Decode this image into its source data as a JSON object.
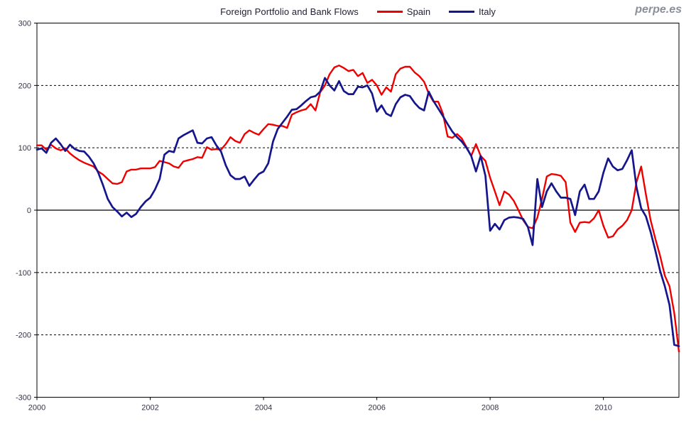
{
  "watermark": "perpe.es",
  "chart_data": {
    "type": "line",
    "title": "Foreign Portfolio and Bank Flows",
    "frequency": "monthly",
    "x_start": "2000-01",
    "x_end": "2011-05",
    "ylim": [
      -300,
      300
    ],
    "y_ticks": [
      300,
      200,
      100,
      0,
      -100,
      -200,
      -300
    ],
    "x_tick_years": [
      "2000",
      "2002",
      "2004",
      "2006",
      "2008",
      "2010"
    ],
    "x_tick_month_index": [
      0,
      24,
      48,
      72,
      96,
      120
    ],
    "grid": "dashed horizontal lines at -200,-100,100,200; solid line at 0; boxed plot frame",
    "legend_position": "top",
    "axis_color": "#000000",
    "series": [
      {
        "name": "Spain",
        "color": "#ee0000",
        "values": [
          104,
          104,
          97,
          105,
          99,
          96,
          99,
          91,
          85,
          80,
          76,
          73,
          70,
          62,
          57,
          50,
          43,
          42,
          45,
          62,
          65,
          65,
          67,
          67,
          67,
          69,
          79,
          77,
          75,
          70,
          68,
          78,
          80,
          82,
          85,
          84,
          101,
          97,
          98,
          97,
          106,
          117,
          111,
          108,
          122,
          128,
          124,
          121,
          130,
          138,
          137,
          135,
          135,
          132,
          153,
          157,
          160,
          162,
          170,
          160,
          189,
          200,
          218,
          229,
          232,
          228,
          223,
          225,
          215,
          220,
          204,
          209,
          200,
          185,
          197,
          190,
          218,
          227,
          230,
          230,
          221,
          215,
          206,
          187,
          174,
          174,
          155,
          118,
          116,
          122,
          115,
          101,
          87,
          106,
          87,
          79,
          52,
          30,
          8,
          30,
          25,
          15,
          0,
          -16,
          -27,
          -29,
          -12,
          18,
          54,
          58,
          57,
          55,
          45,
          -20,
          -35,
          -20,
          -19,
          -20,
          -13,
          0,
          -25,
          -44,
          -42,
          -31,
          -25,
          -16,
          0,
          45,
          70,
          25,
          -16,
          -46,
          -73,
          -105,
          -122,
          -165,
          -227
        ]
      },
      {
        "name": "Italy",
        "color": "#16168c",
        "values": [
          97,
          99,
          92,
          108,
          115,
          106,
          95,
          105,
          98,
          95,
          94,
          86,
          75,
          60,
          40,
          18,
          5,
          -2,
          -10,
          -4,
          -11,
          -6,
          5,
          14,
          20,
          33,
          50,
          89,
          95,
          93,
          115,
          120,
          124,
          128,
          108,
          107,
          115,
          117,
          104,
          94,
          72,
          56,
          50,
          50,
          54,
          39,
          49,
          58,
          62,
          75,
          110,
          130,
          140,
          150,
          161,
          162,
          168,
          175,
          181,
          183,
          190,
          212,
          200,
          192,
          207,
          191,
          186,
          186,
          198,
          197,
          200,
          187,
          158,
          168,
          155,
          151,
          170,
          181,
          185,
          183,
          172,
          164,
          160,
          190,
          175,
          163,
          151,
          138,
          126,
          117,
          110,
          100,
          87,
          62,
          87,
          55,
          -33,
          -22,
          -31,
          -16,
          -12,
          -11,
          -12,
          -14,
          -27,
          -56,
          50,
          5,
          30,
          43,
          30,
          20,
          20,
          18,
          -8,
          30,
          41,
          18,
          18,
          30,
          60,
          83,
          70,
          64,
          66,
          80,
          96,
          37,
          3,
          -10,
          -35,
          -65,
          -97,
          -122,
          -152,
          -216,
          -218
        ]
      }
    ]
  }
}
